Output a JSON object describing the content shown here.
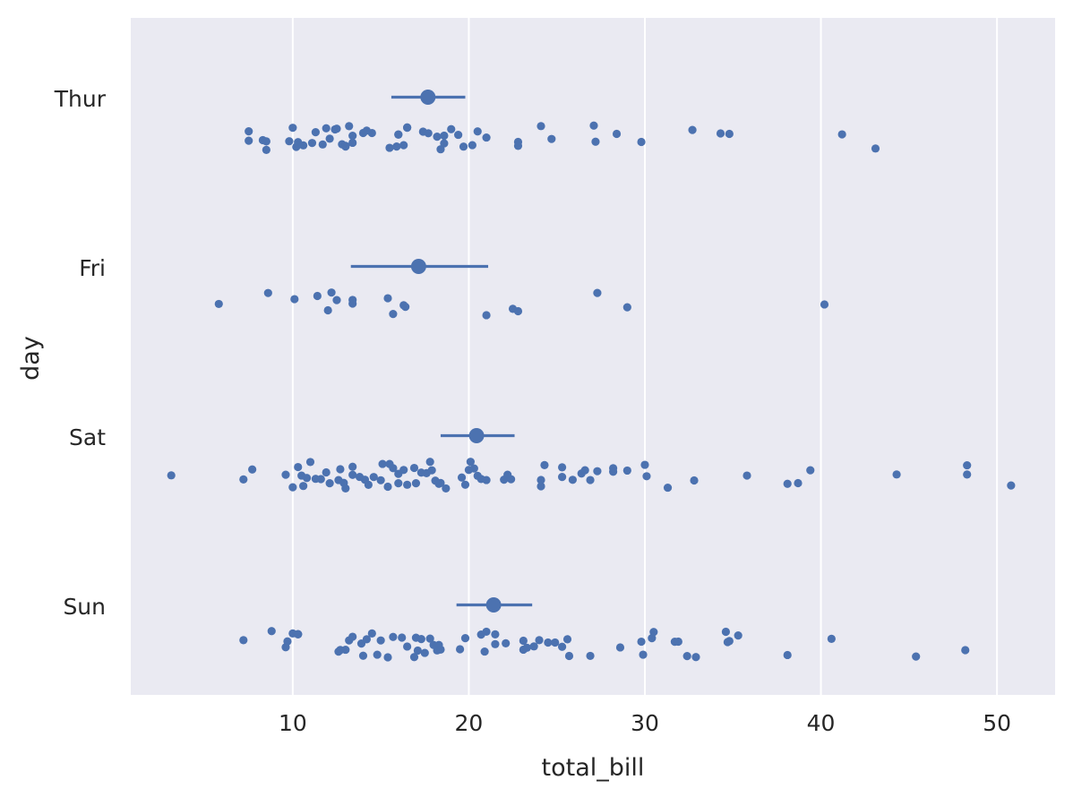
{
  "chart_data": {
    "type": "scatter",
    "subtype": "stripplot-with-pointplot",
    "orientation": "horizontal",
    "title": "",
    "xlabel": "total_bill",
    "ylabel": "day",
    "xlim": [
      0.8,
      53.3
    ],
    "xticks": [
      10,
      20,
      30,
      40,
      50
    ],
    "categories": [
      "Thur",
      "Fri",
      "Sat",
      "Sun"
    ],
    "grid": true,
    "background_color": "#eaeaf2",
    "grid_color": "#ffffff",
    "point_color": "#4c72b0",
    "series": [
      {
        "category": "Thur",
        "mean": 17.68,
        "ci": [
          15.6,
          19.8
        ],
        "values": [
          7.5,
          7.5,
          8.3,
          8.5,
          8.5,
          9.8,
          10.0,
          10.2,
          10.3,
          10.6,
          11.1,
          11.3,
          11.7,
          11.9,
          12.1,
          12.4,
          12.5,
          12.8,
          13.0,
          13.0,
          13.2,
          13.4,
          13.4,
          14.0,
          14.2,
          14.5,
          15.5,
          15.9,
          16.0,
          16.0,
          16.3,
          16.5,
          16.5,
          17.4,
          17.7,
          18.2,
          18.4,
          18.6,
          18.6,
          19.0,
          19.4,
          19.7,
          20.2,
          20.5,
          21.0,
          22.8,
          22.8,
          24.1,
          24.7,
          27.1,
          27.2,
          28.4,
          29.8,
          32.7,
          34.3,
          34.8,
          41.2,
          43.1
        ]
      },
      {
        "category": "Fri",
        "mean": 17.15,
        "ci": [
          13.3,
          21.1
        ],
        "values": [
          5.8,
          8.6,
          10.1,
          11.4,
          12.0,
          12.2,
          12.5,
          13.4,
          13.4,
          15.4,
          15.7,
          16.3,
          16.4,
          21.0,
          22.5,
          22.8,
          27.3,
          29.0,
          40.2
        ]
      },
      {
        "category": "Sat",
        "mean": 20.44,
        "ci": [
          18.4,
          22.6
        ],
        "values": [
          3.1,
          7.2,
          7.7,
          9.6,
          10.0,
          10.3,
          10.5,
          10.6,
          10.8,
          11.0,
          11.3,
          11.6,
          11.9,
          12.1,
          12.6,
          12.7,
          12.9,
          13.0,
          13.4,
          13.4,
          13.8,
          14.1,
          14.3,
          14.6,
          15.0,
          15.1,
          15.4,
          15.5,
          15.7,
          16.0,
          16.0,
          16.3,
          16.5,
          16.9,
          17.0,
          17.3,
          17.6,
          17.8,
          17.9,
          18.1,
          18.3,
          18.4,
          18.7,
          19.6,
          19.8,
          20.0,
          20.1,
          20.3,
          20.5,
          20.7,
          21.0,
          22.0,
          22.2,
          22.4,
          24.1,
          24.1,
          24.3,
          25.3,
          25.3,
          25.9,
          26.4,
          26.6,
          26.9,
          27.3,
          28.2,
          28.2,
          29.0,
          30.0,
          30.1,
          31.3,
          32.8,
          35.8,
          38.1,
          38.7,
          39.4,
          44.3,
          48.3,
          48.3,
          50.8
        ]
      },
      {
        "category": "Sun",
        "mean": 21.41,
        "ci": [
          19.3,
          23.6
        ],
        "values": [
          7.2,
          8.8,
          9.6,
          9.7,
          10.0,
          10.3,
          10.3,
          10.3,
          12.6,
          12.7,
          13.0,
          13.2,
          13.4,
          13.9,
          14.0,
          14.2,
          14.5,
          14.8,
          15.0,
          15.4,
          15.7,
          16.2,
          16.5,
          16.9,
          17.0,
          17.1,
          17.3,
          17.5,
          17.8,
          18.0,
          18.2,
          18.3,
          18.4,
          19.5,
          19.8,
          20.7,
          20.9,
          21.0,
          21.5,
          21.5,
          22.1,
          23.1,
          23.1,
          23.3,
          23.7,
          24.0,
          24.5,
          24.9,
          25.3,
          25.6,
          25.7,
          26.9,
          28.6,
          29.8,
          29.9,
          30.4,
          30.5,
          31.7,
          31.9,
          32.4,
          32.9,
          34.6,
          34.7,
          34.8,
          35.3,
          38.1,
          40.6,
          45.4,
          48.2
        ]
      }
    ]
  }
}
